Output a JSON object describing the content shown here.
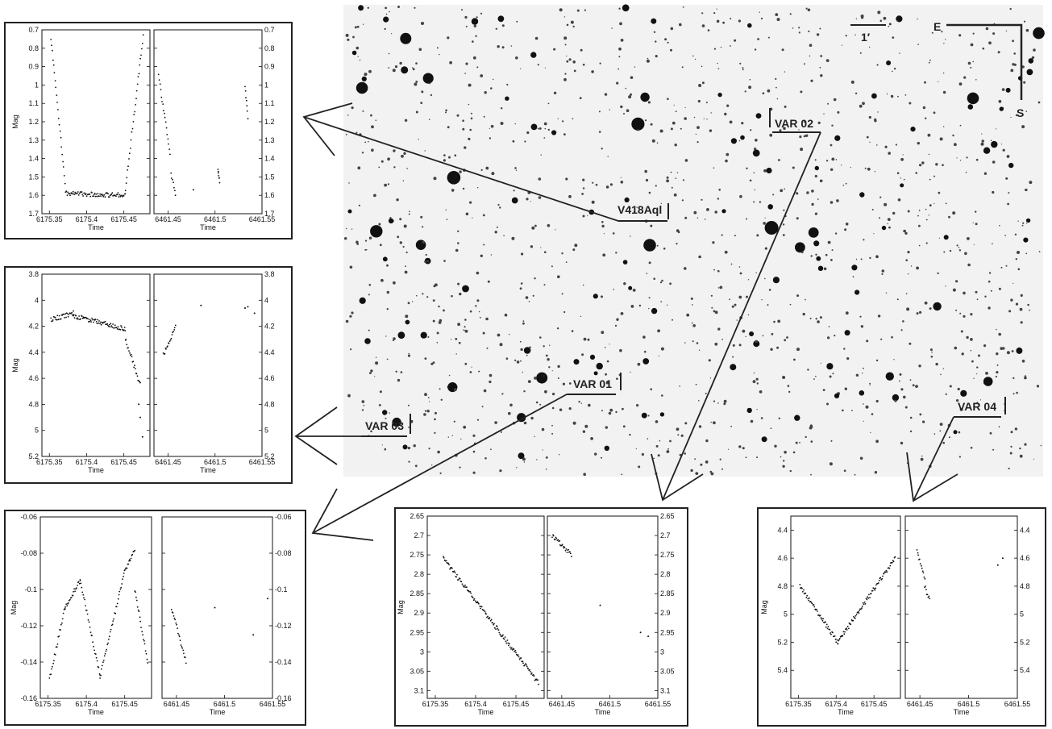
{
  "field": {
    "scale_label": "1′",
    "compass": {
      "east": "E",
      "south": "S"
    },
    "labels": {
      "v418": "V418Aql",
      "var01": "VAR 01",
      "var02": "VAR 02",
      "var03": "VAR 03",
      "var04": "VAR 04"
    }
  },
  "chart_data": [
    {
      "type": "scatter",
      "target": "V418Aql",
      "xlabel": "Time",
      "ylabel": "Mag",
      "y_inverted": true,
      "ylim": [
        0.7,
        1.7
      ],
      "y_ticks": [
        "0.7",
        "0.8",
        "0.9",
        "1",
        "1.1",
        "1.2",
        "1.3",
        "1.4",
        "1.5",
        "1.6",
        "1.7"
      ],
      "panels": [
        {
          "xlim": [
            6175.34,
            6175.485
          ],
          "x_ticks": [
            "6175.35",
            "6175.4",
            "6175.45"
          ],
          "segments": [
            [
              6175.352,
              0.74,
              6175.372,
              1.57
            ],
            [
              6175.372,
              1.59,
              6175.452,
              1.6
            ],
            [
              6175.452,
              1.57,
              6175.476,
              0.73
            ]
          ]
        },
        {
          "xlim": [
            6461.435,
            6461.55
          ],
          "x_ticks": [
            "6461.45",
            "6461.5",
            "6461.55"
          ],
          "segments": [
            [
              6461.44,
              0.95,
              6461.452,
              1.37
            ],
            [
              6461.453,
              1.49,
              6461.458,
              1.59
            ],
            [
              6461.503,
              1.46,
              6461.505,
              1.53
            ],
            [
              6461.532,
              1.0,
              6461.535,
              1.18
            ]
          ],
          "points": [
            [
              6461.477,
              1.57
            ]
          ]
        }
      ]
    },
    {
      "type": "scatter",
      "target": "VAR 03",
      "xlabel": "Time",
      "ylabel": "Mag",
      "y_inverted": true,
      "ylim": [
        3.8,
        5.2
      ],
      "y_ticks": [
        "3.8",
        "4",
        "4.2",
        "4.4",
        "4.6",
        "4.8",
        "5",
        "5.2"
      ],
      "panels": [
        {
          "xlim": [
            6175.34,
            6175.485
          ],
          "x_ticks": [
            "6175.35",
            "6175.4",
            "6175.45"
          ],
          "segments": [
            [
              6175.352,
              4.15,
              6175.382,
              4.1
            ],
            [
              6175.382,
              4.12,
              6175.452,
              4.22
            ],
            [
              6175.452,
              4.3,
              6175.472,
              4.65
            ]
          ],
          "points": [
            [
              6175.47,
              4.8
            ],
            [
              6175.472,
              4.9
            ],
            [
              6175.475,
              5.05
            ]
          ]
        },
        {
          "xlim": [
            6461.435,
            6461.55
          ],
          "x_ticks": [
            "6461.45",
            "6461.5",
            "6461.55"
          ],
          "segments": [
            [
              6461.445,
              4.42,
              6461.458,
              4.2
            ]
          ],
          "points": [
            [
              6461.485,
              4.04
            ],
            [
              6461.532,
              4.06
            ],
            [
              6461.535,
              4.05
            ],
            [
              6461.542,
              4.1
            ]
          ]
        }
      ]
    },
    {
      "type": "scatter",
      "target": "VAR 01",
      "xlabel": "Time",
      "ylabel": "Mag",
      "ylim": [
        -0.16,
        -0.06
      ],
      "y_ticks": [
        "-0.16",
        "-0.14",
        "-0.12",
        "-0.1",
        "-0.08",
        "-0.06"
      ],
      "panels": [
        {
          "xlim": [
            6175.34,
            6175.485
          ],
          "x_ticks": [
            "6175.35",
            "6175.4",
            "6175.45"
          ],
          "segments": [
            [
              6175.352,
              -0.15,
              6175.372,
              -0.11
            ],
            [
              6175.372,
              -0.11,
              6175.392,
              -0.095
            ],
            [
              6175.392,
              -0.095,
              6175.418,
              -0.148
            ],
            [
              6175.418,
              -0.148,
              6175.45,
              -0.09
            ],
            [
              6175.45,
              -0.09,
              6175.463,
              -0.078
            ],
            [
              6175.463,
              -0.1,
              6175.48,
              -0.14
            ]
          ]
        },
        {
          "xlim": [
            6461.435,
            6461.55
          ],
          "x_ticks": [
            "6461.45",
            "6461.5",
            "6461.55"
          ],
          "segments": [
            [
              6461.445,
              -0.11,
              6461.46,
              -0.14
            ]
          ],
          "points": [
            [
              6461.49,
              -0.11
            ],
            [
              6461.53,
              -0.125
            ],
            [
              6461.545,
              -0.105
            ]
          ]
        }
      ]
    },
    {
      "type": "scatter",
      "target": "VAR 02",
      "xlabel": "Time",
      "ylabel": "Mag",
      "y_inverted": true,
      "ylim": [
        2.65,
        3.12
      ],
      "y_ticks": [
        "2.65",
        "2.7",
        "2.75",
        "2.8",
        "2.85",
        "2.9",
        "2.95",
        "3",
        "3.05",
        "3.1"
      ],
      "panels": [
        {
          "xlim": [
            6175.34,
            6175.485
          ],
          "x_ticks": [
            "6175.35",
            "6175.4",
            "6175.45"
          ],
          "segments": [
            [
              6175.36,
              2.76,
              6175.478,
              3.08
            ]
          ]
        },
        {
          "xlim": [
            6461.435,
            6461.55
          ],
          "x_ticks": [
            "6461.45",
            "6461.5",
            "6461.55"
          ],
          "segments": [
            [
              6461.44,
              2.7,
              6461.46,
              2.75
            ]
          ],
          "points": [
            [
              6461.49,
              2.88
            ],
            [
              6461.532,
              2.95
            ],
            [
              6461.54,
              2.96
            ]
          ]
        }
      ]
    },
    {
      "type": "scatter",
      "target": "VAR 04",
      "xlabel": "Time",
      "ylabel": "Mag",
      "y_inverted": true,
      "ylim": [
        4.3,
        5.6
      ],
      "y_ticks": [
        "4.4",
        "4.6",
        "4.8",
        "5",
        "5.2",
        "5.4"
      ],
      "panels": [
        {
          "xlim": [
            6175.34,
            6175.485
          ],
          "x_ticks": [
            "6175.35",
            "6175.4",
            "6175.45"
          ],
          "segments": [
            [
              6175.352,
              4.8,
              6175.402,
              5.2
            ],
            [
              6175.402,
              5.2,
              6175.478,
              4.6
            ]
          ]
        },
        {
          "xlim": [
            6461.435,
            6461.55
          ],
          "x_ticks": [
            "6461.45",
            "6461.5",
            "6461.55"
          ],
          "segments": [
            [
              6461.447,
              4.55,
              6461.455,
              4.75
            ],
            [
              6461.455,
              4.8,
              6461.46,
              4.9
            ]
          ],
          "points": [
            [
              6461.53,
              4.65
            ],
            [
              6461.535,
              4.6
            ]
          ]
        }
      ]
    }
  ]
}
